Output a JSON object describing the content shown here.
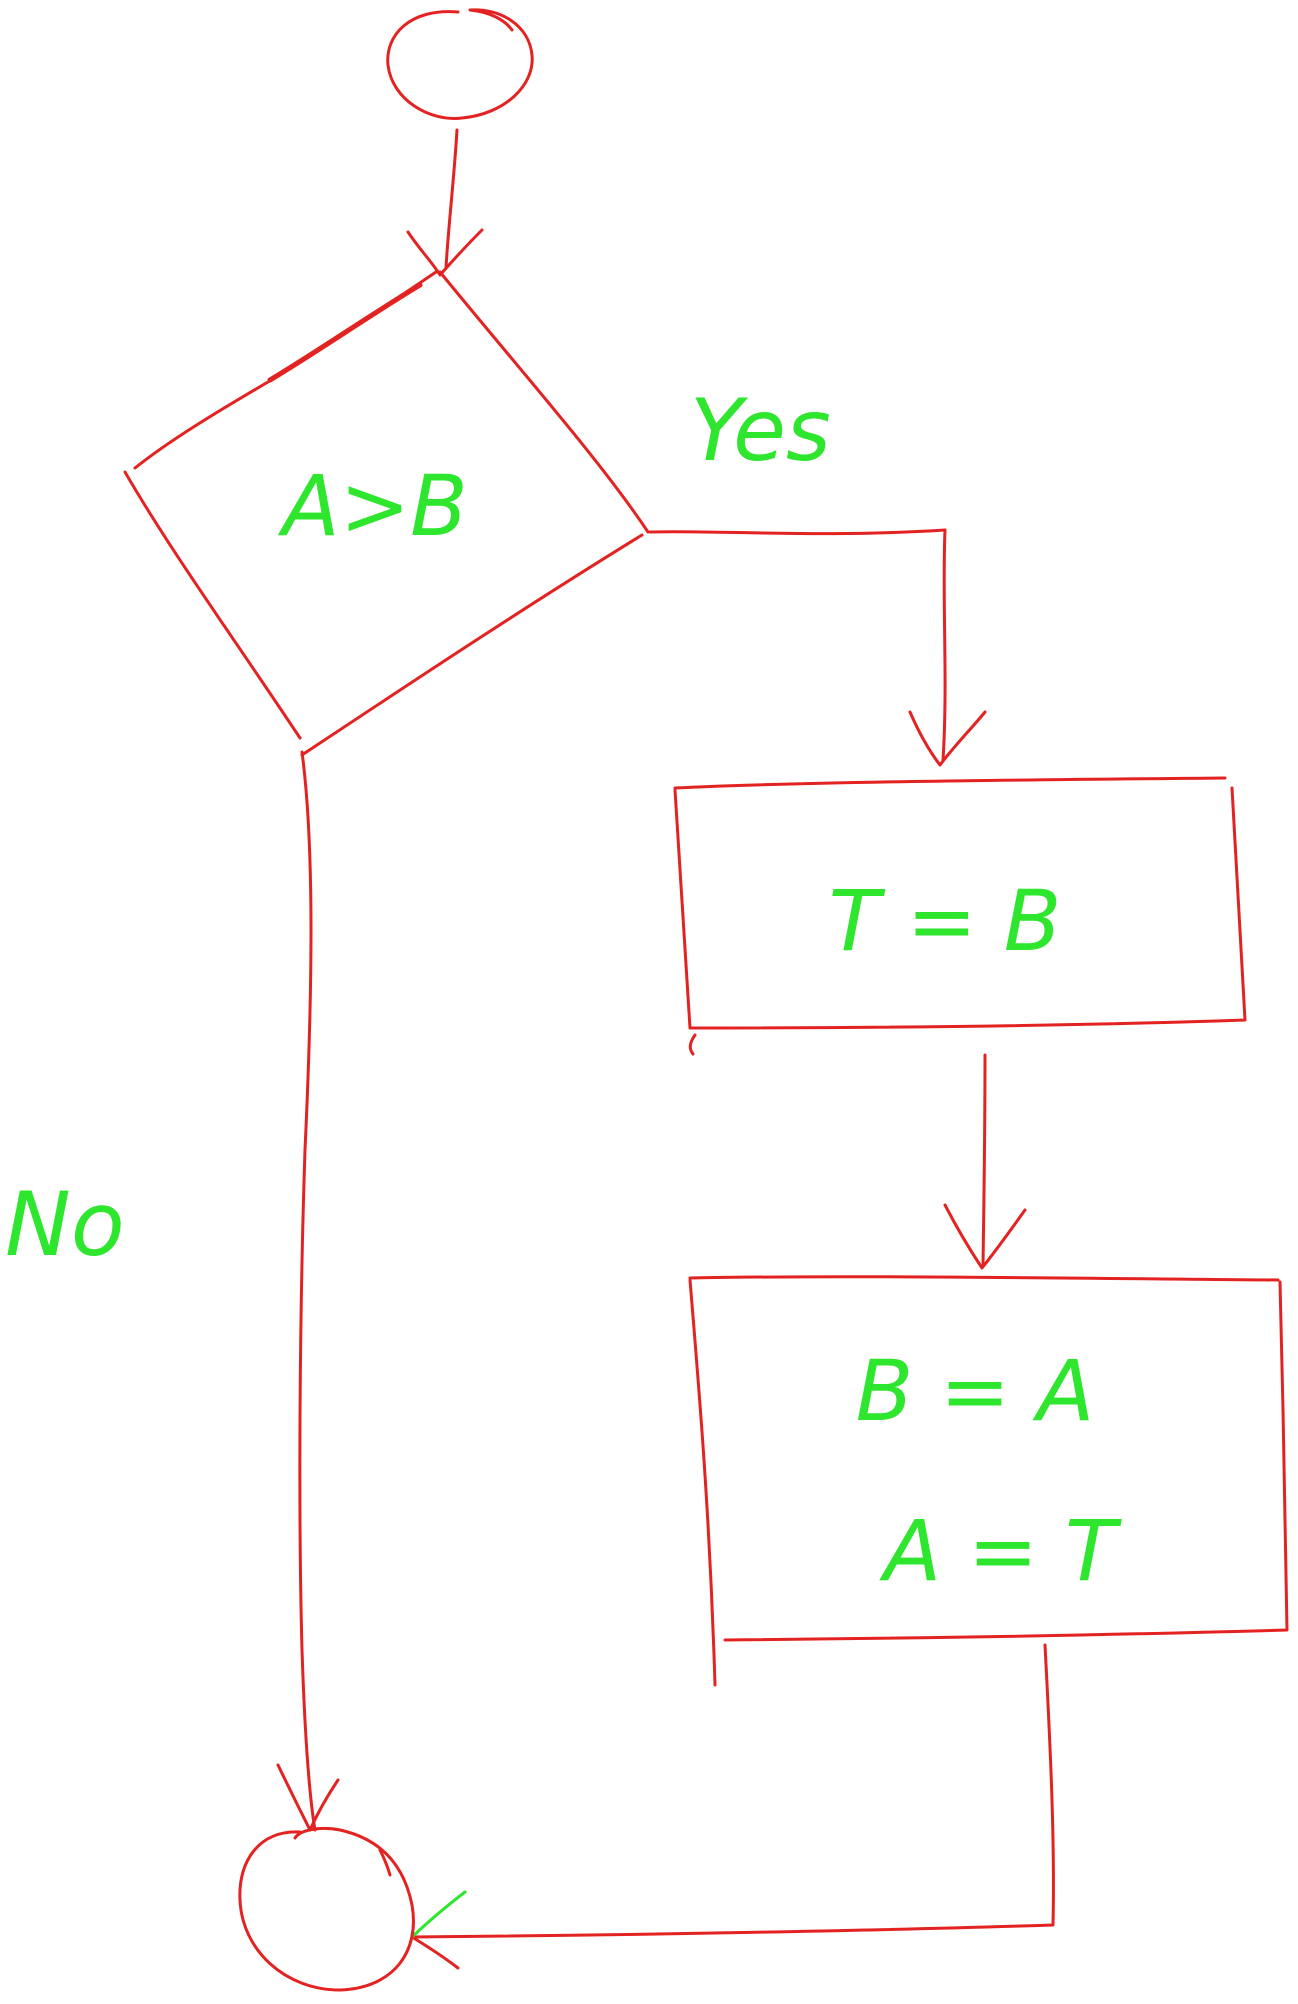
{
  "colors": {
    "shape_stroke": "#e32222",
    "text_fill": "#2ee62e",
    "background": "#ffffff"
  },
  "nodes": {
    "start": {
      "label": ""
    },
    "decision": {
      "label": "A>B"
    },
    "process_1": {
      "label": "T = B"
    },
    "process_2": {
      "line_1": "B = A",
      "line_2": "A = T"
    },
    "end": {
      "label": ""
    }
  },
  "edges": {
    "yes_label": "Yes",
    "no_label": "No"
  }
}
